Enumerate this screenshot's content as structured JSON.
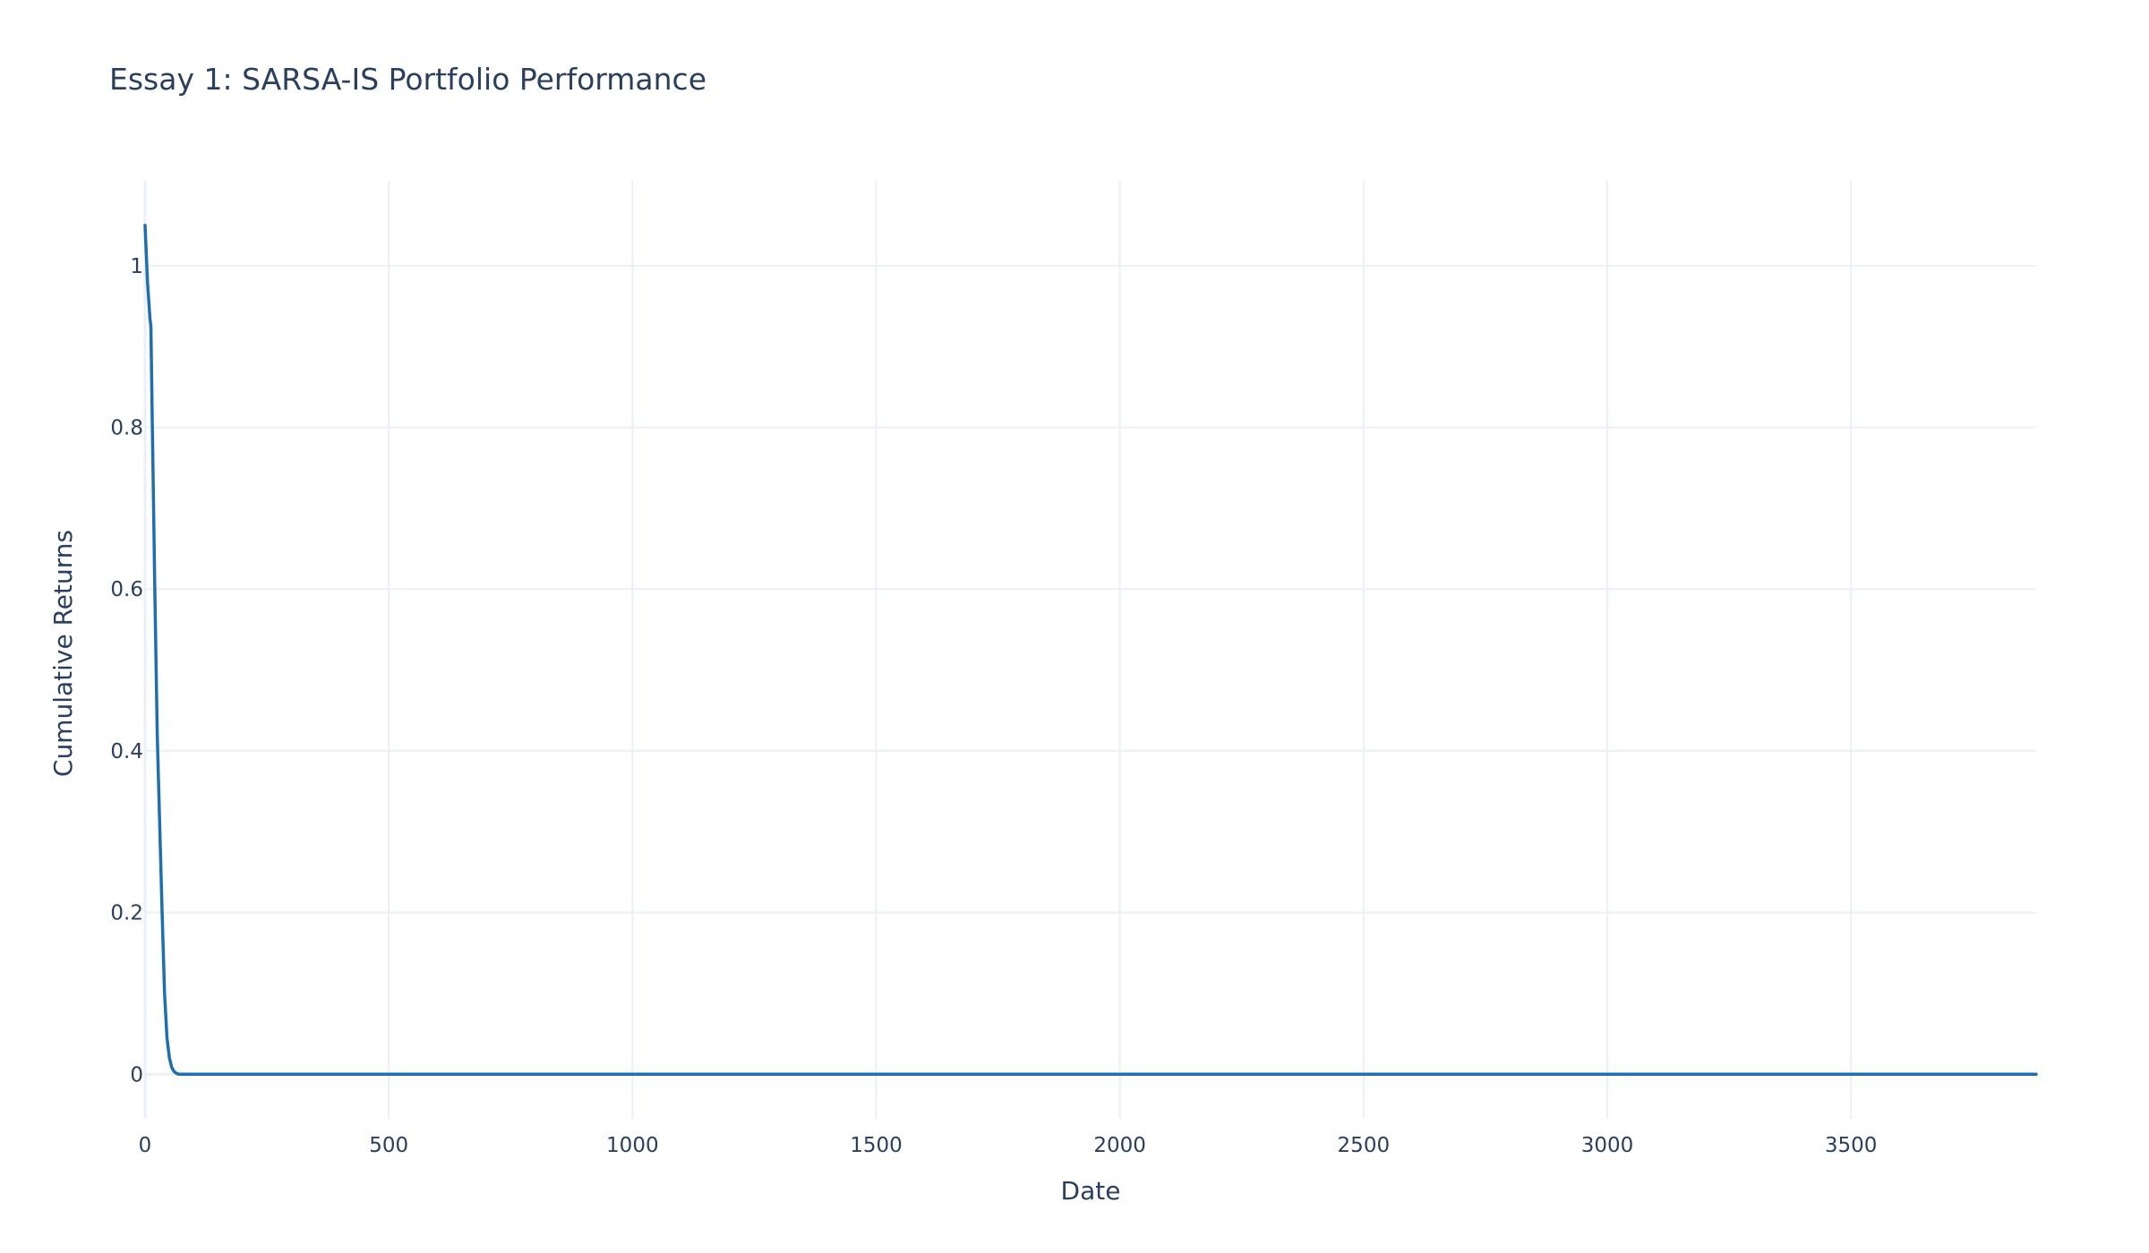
{
  "chart_data": {
    "type": "line",
    "title": "Essay 1: SARSA-IS Portfolio Performance",
    "xlabel": "Date",
    "ylabel": "Cumulative Returns",
    "xlim": [
      0,
      3880
    ],
    "ylim": [
      -0.055,
      1.105
    ],
    "x_ticks": [
      0,
      500,
      1000,
      1500,
      2000,
      2500,
      3000,
      3500
    ],
    "y_ticks": [
      0,
      0.2,
      0.4,
      0.6,
      0.8,
      1
    ],
    "x_tick_labels": [
      "0",
      "500",
      "1000",
      "1500",
      "2000",
      "2500",
      "3000",
      "3500"
    ],
    "y_tick_labels": [
      "0",
      "0.2",
      "0.4",
      "0.6",
      "0.8",
      "1"
    ],
    "grid": true,
    "legend": "none",
    "series": [
      {
        "color": "#1f6faf",
        "x": [
          0,
          5,
          10,
          12,
          15,
          20,
          25,
          30,
          35,
          40,
          45,
          50,
          55,
          60,
          65,
          70,
          100,
          500,
          1000,
          1500,
          2000,
          2500,
          3000,
          3500,
          3880
        ],
        "y": [
          1.05,
          0.98,
          0.935,
          0.925,
          0.8,
          0.6,
          0.42,
          0.31,
          0.2,
          0.1,
          0.045,
          0.02,
          0.008,
          0.003,
          0.001,
          0.0,
          0.0,
          0.0,
          0.0,
          0.0,
          0.0,
          0.0,
          0.0,
          0.0,
          0.0
        ]
      }
    ]
  }
}
